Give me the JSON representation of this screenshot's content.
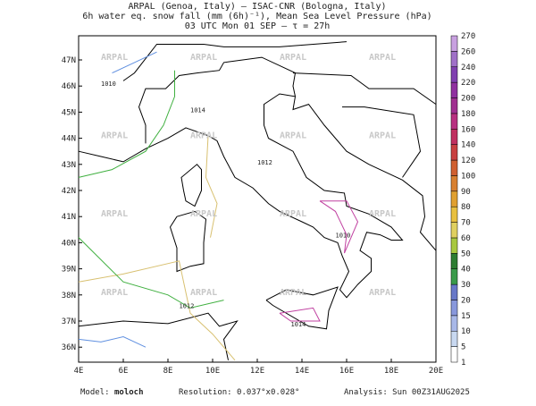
{
  "header": {
    "line1": "ARPAL (Genoa, Italy)  —  ISAC-CNR (Bologna, Italy)",
    "line2": "6h water eq. snow fall (mm (6h)⁻¹), Mean Sea Level Pressure (hPa)",
    "line3": "03 UTC Mon 01 SEP  —  τ = 27h"
  },
  "map": {
    "lon_labels": [
      "4E",
      "6E",
      "8E",
      "10E",
      "12E",
      "14E",
      "16E",
      "18E",
      "20E"
    ],
    "lat_labels": [
      "36N",
      "37N",
      "38N",
      "39N",
      "40N",
      "41N",
      "42N",
      "43N",
      "44N",
      "45N",
      "46N",
      "47N"
    ],
    "watermark": "ARPAL",
    "contour_labels": [
      "1010",
      "1014",
      "1012"
    ]
  },
  "colorbar": {
    "levels": [
      1,
      5,
      10,
      15,
      20,
      30,
      40,
      50,
      60,
      70,
      80,
      90,
      100,
      120,
      140,
      160,
      180,
      200,
      220,
      240,
      260,
      270
    ],
    "colors": [
      "#ffffff",
      "#c8d8f0",
      "#a8b8e8",
      "#8898dc",
      "#6878c8",
      "#3a9a4a",
      "#2e7d32",
      "#a8c840",
      "#e0d060",
      "#e8c040",
      "#e0a030",
      "#d88030",
      "#d06030",
      "#c84040",
      "#c03060",
      "#b83080",
      "#a03090",
      "#9030a0",
      "#8040b0",
      "#a070c8",
      "#c8a0e0"
    ]
  },
  "footer": {
    "model_label": "Model:",
    "model": "moloch",
    "resolution": "Resolution: 0.037°x0.028°",
    "analysis": "Analysis: Sun 00Z31AUG2025"
  }
}
